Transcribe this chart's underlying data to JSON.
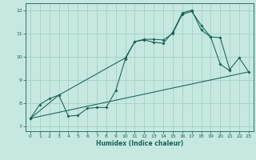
{
  "xlabel": "Humidex (Indice chaleur)",
  "xlim": [
    -0.5,
    23.5
  ],
  "ylim": [
    6.8,
    12.3
  ],
  "yticks": [
    7,
    8,
    9,
    10,
    11,
    12
  ],
  "xticks": [
    0,
    1,
    2,
    3,
    4,
    5,
    6,
    7,
    8,
    9,
    10,
    11,
    12,
    13,
    14,
    15,
    16,
    17,
    18,
    19,
    20,
    21,
    22,
    23
  ],
  "bg_color": "#c5e8e0",
  "grid_color": "#a8cfc8",
  "line_color": "#1a6058",
  "line1_x": [
    0,
    1,
    2,
    3,
    4,
    5,
    6,
    7,
    8,
    9,
    10,
    11,
    12,
    13,
    14,
    15,
    16,
    17,
    18,
    19,
    20,
    21
  ],
  "line1_y": [
    7.35,
    7.95,
    8.2,
    8.35,
    7.45,
    7.48,
    7.78,
    7.82,
    7.82,
    8.55,
    9.9,
    10.65,
    10.75,
    10.75,
    10.72,
    11.0,
    11.82,
    11.95,
    11.35,
    10.85,
    9.68,
    9.4
  ],
  "line2_x": [
    0,
    23
  ],
  "line2_y": [
    7.35,
    9.35
  ],
  "line3_x": [
    0,
    3,
    10,
    11,
    12,
    13,
    14,
    15,
    16,
    17,
    18,
    19,
    20,
    21,
    22,
    23
  ],
  "line3_y": [
    7.35,
    8.35,
    9.95,
    10.65,
    10.72,
    10.62,
    10.58,
    11.05,
    11.88,
    12.0,
    11.15,
    10.85,
    10.82,
    9.45,
    9.95,
    9.35
  ]
}
